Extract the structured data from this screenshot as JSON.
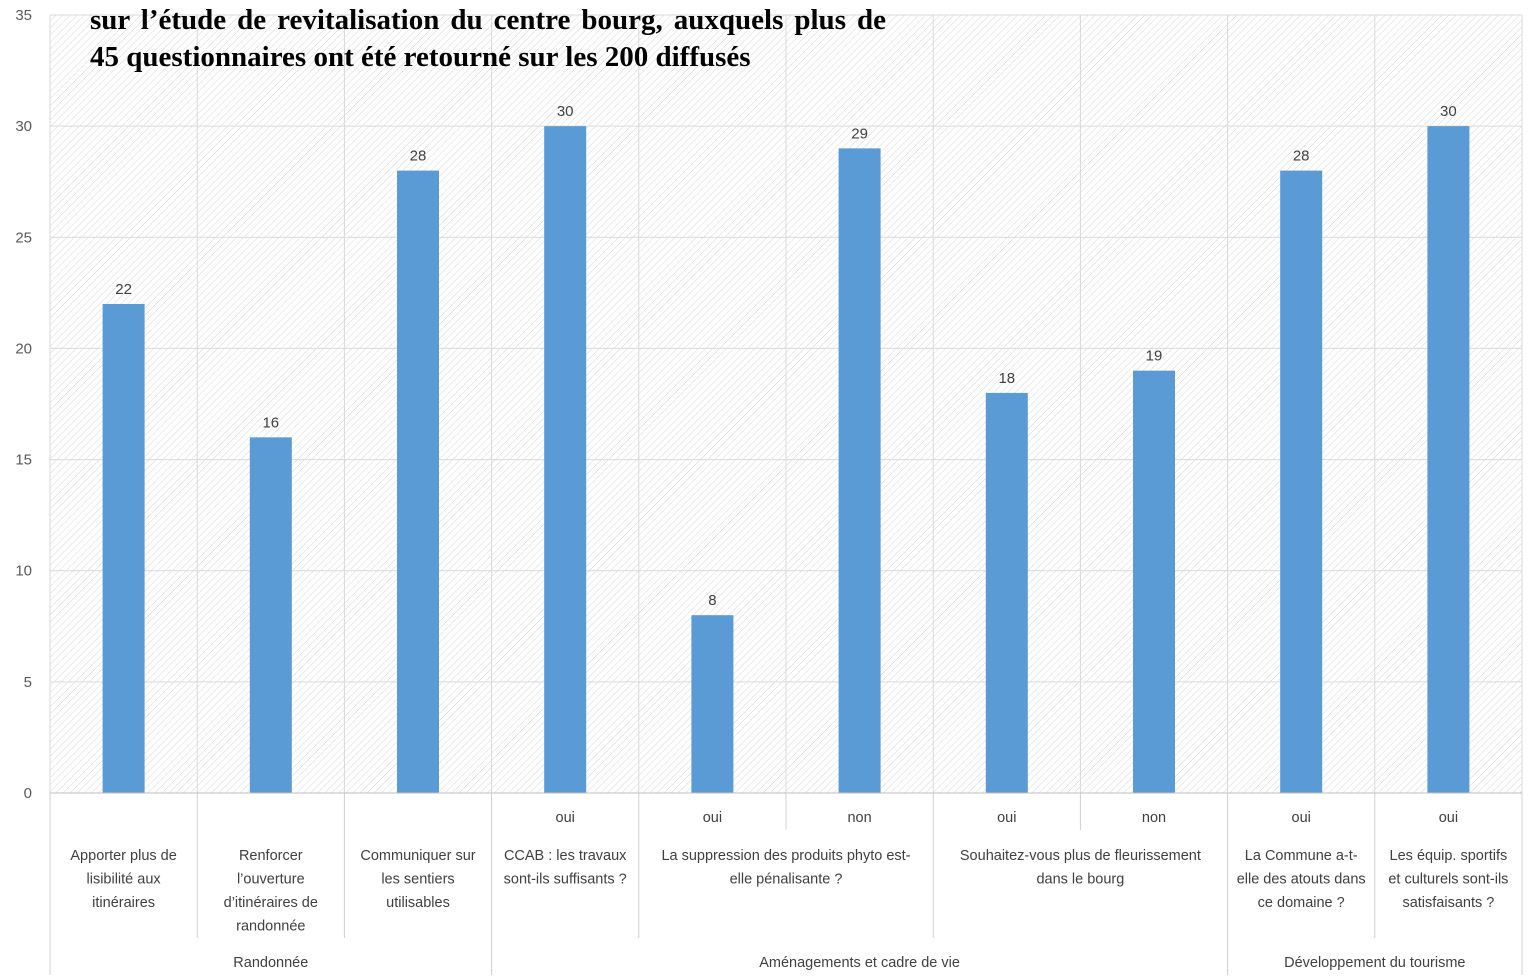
{
  "chart_data": {
    "type": "bar",
    "title": "sur l’étude de revitalisation du centre bourg, auxquels plus de 45 questionnaires ont été retourné sur les 200 diffusés",
    "ylim": [
      0,
      35
    ],
    "y_ticks": [
      "0",
      "5",
      "10",
      "15",
      "20",
      "25",
      "30",
      "35"
    ],
    "grid": true,
    "bar_color": "#5b9bd5",
    "values": [
      22,
      16,
      28,
      30,
      8,
      29,
      18,
      19,
      28,
      30
    ],
    "level1": [
      "",
      "",
      "",
      "oui",
      "oui",
      "non",
      "oui",
      "non",
      "oui",
      "oui"
    ],
    "level2": [
      [
        "Apporter plus de",
        "lisibilité aux",
        "itinéraires"
      ],
      [
        "Renforcer",
        "l’ouverture",
        "d’itinéraires de",
        "randonnée"
      ],
      [
        "Communiquer sur",
        "les sentiers",
        "utilisables"
      ],
      [
        "CCAB : les travaux",
        "sont-ils suffisants ?"
      ],
      [
        "La suppression des produits phyto est-",
        "elle pénalisante ?"
      ],
      [
        "Souhaitez-vous plus de fleurissement",
        "dans le bourg"
      ],
      [
        "La Commune a-t-",
        "elle des atouts dans",
        "ce domaine ?"
      ],
      [
        "Les équip. sportifs",
        "et culturels sont-ils",
        "satisfaisants ?"
      ]
    ],
    "level3": [
      "Randonnée",
      "Aménagements et cadre de vie",
      "Développement du tourisme"
    ]
  }
}
